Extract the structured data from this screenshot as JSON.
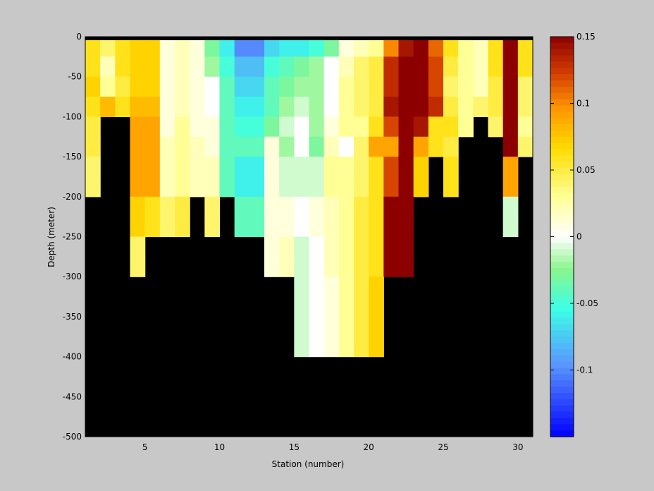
{
  "chart_data": {
    "type": "heatmap",
    "title": "",
    "xlabel": "Station (number)",
    "ylabel": "Depth (meter)",
    "xlim": [
      1,
      31
    ],
    "ylim": [
      -500,
      0
    ],
    "xticks": [
      5,
      10,
      15,
      20,
      25,
      30
    ],
    "yticks": [
      0,
      -50,
      -100,
      -150,
      -200,
      -250,
      -300,
      -350,
      -400,
      -450,
      -500
    ],
    "colorbar": {
      "clim": [
        -0.15,
        0.15
      ],
      "ticks": [
        0.15,
        0.1,
        0.05,
        0,
        -0.05,
        -0.1
      ],
      "colormap": "jet-like with white at zero"
    },
    "missing_color": "#000000",
    "background_color": "#c8c8c8",
    "depth_bins": [
      0,
      -25,
      -50,
      -75,
      -100,
      -125,
      -150,
      -175,
      -200,
      -225,
      -250,
      -275,
      -300,
      -325,
      -350,
      -375,
      -400
    ],
    "stations": [
      1,
      2,
      3,
      4,
      5,
      6,
      7,
      8,
      9,
      10,
      11,
      12,
      13,
      14,
      15,
      16,
      17,
      18,
      19,
      20,
      21,
      22,
      23,
      24,
      25,
      26,
      27,
      28,
      29,
      30
    ],
    "values": [
      [
        0.06,
        0.04,
        0.06,
        0.07,
        0.07,
        0.01,
        0.02,
        0.01,
        -0.03,
        -0.06,
        -0.1,
        -0.1,
        -0.07,
        -0.06,
        -0.06,
        -0.05,
        -0.03,
        0.01,
        0.02,
        0.03,
        0.1,
        0.14,
        0.15,
        0.11,
        0.06,
        0.03,
        0.02,
        0.06,
        0.15,
        0.06
      ],
      [
        0.06,
        0.02,
        0.06,
        0.07,
        0.07,
        0.01,
        0.02,
        0.01,
        -0.02,
        -0.05,
        -0.08,
        -0.08,
        -0.05,
        -0.04,
        -0.03,
        -0.02,
        0.0,
        0.02,
        0.04,
        0.05,
        0.13,
        0.15,
        0.15,
        0.12,
        0.05,
        0.03,
        0.02,
        0.06,
        0.15,
        0.06
      ],
      [
        0.07,
        0.03,
        0.05,
        0.07,
        0.07,
        0.01,
        0.02,
        0.01,
        0.0,
        -0.04,
        -0.07,
        -0.07,
        -0.04,
        -0.03,
        -0.02,
        -0.02,
        0.0,
        0.03,
        0.04,
        0.05,
        0.13,
        0.15,
        0.15,
        0.12,
        0.04,
        0.03,
        0.02,
        0.05,
        0.15,
        0.04
      ],
      [
        0.06,
        0.08,
        0.06,
        0.08,
        0.08,
        0.01,
        0.02,
        0.01,
        0.0,
        -0.04,
        -0.06,
        -0.06,
        -0.04,
        -0.02,
        -0.01,
        -0.02,
        0.0,
        0.03,
        0.04,
        0.05,
        0.14,
        0.15,
        0.15,
        0.13,
        0.05,
        0.03,
        0.04,
        0.05,
        0.15,
        0.04
      ],
      [
        0.05,
        null,
        null,
        0.09,
        0.09,
        0.01,
        0.03,
        0.01,
        0.01,
        -0.04,
        -0.05,
        -0.05,
        -0.03,
        -0.01,
        0.0,
        -0.02,
        0.01,
        0.03,
        0.03,
        0.06,
        0.12,
        0.15,
        0.14,
        0.06,
        0.06,
        0.03,
        null,
        0.04,
        0.15,
        0.03
      ],
      [
        0.05,
        null,
        null,
        0.09,
        0.09,
        0.02,
        0.03,
        0.02,
        0.01,
        -0.04,
        -0.04,
        -0.04,
        0.01,
        -0.02,
        0.0,
        -0.03,
        0.02,
        0.0,
        0.04,
        0.09,
        0.09,
        0.15,
        0.09,
        0.06,
        0.05,
        null,
        null,
        null,
        0.15,
        0.04
      ],
      [
        0.04,
        null,
        null,
        0.09,
        0.09,
        0.02,
        0.03,
        0.02,
        0.02,
        -0.04,
        -0.06,
        -0.06,
        0.01,
        -0.01,
        -0.01,
        -0.01,
        0.03,
        0.03,
        0.04,
        0.06,
        0.12,
        0.15,
        0.07,
        null,
        0.06,
        null,
        null,
        null,
        0.09,
        null
      ],
      [
        0.04,
        null,
        null,
        0.09,
        0.09,
        0.02,
        0.03,
        0.02,
        0.02,
        -0.04,
        -0.06,
        -0.06,
        0.01,
        -0.01,
        -0.01,
        -0.01,
        0.03,
        0.03,
        0.04,
        0.06,
        0.12,
        0.15,
        0.07,
        null,
        0.06,
        null,
        null,
        null,
        0.09,
        null
      ],
      [
        null,
        null,
        null,
        0.07,
        0.06,
        0.04,
        0.05,
        null,
        0.04,
        null,
        -0.04,
        -0.04,
        0.01,
        0.01,
        0.0,
        0.01,
        0.02,
        0.03,
        0.05,
        0.06,
        0.15,
        0.15,
        null,
        null,
        null,
        null,
        null,
        null,
        -0.01,
        null
      ],
      [
        null,
        null,
        null,
        0.07,
        0.06,
        0.04,
        0.05,
        null,
        0.04,
        null,
        -0.04,
        -0.04,
        0.01,
        0.01,
        0.0,
        0.01,
        0.02,
        0.03,
        0.05,
        0.06,
        0.15,
        0.15,
        null,
        null,
        null,
        null,
        null,
        null,
        -0.01,
        null
      ],
      [
        null,
        null,
        null,
        0.04,
        null,
        null,
        null,
        null,
        null,
        null,
        null,
        null,
        0.01,
        0.02,
        -0.01,
        0.0,
        0.02,
        0.03,
        0.05,
        0.06,
        0.15,
        0.15,
        null,
        null,
        null,
        null,
        null,
        null,
        null,
        null
      ],
      [
        null,
        null,
        null,
        0.04,
        null,
        null,
        null,
        null,
        null,
        null,
        null,
        null,
        0.01,
        0.02,
        -0.01,
        0.0,
        0.02,
        0.03,
        0.05,
        0.06,
        0.15,
        0.15,
        null,
        null,
        null,
        null,
        null,
        null,
        null,
        null
      ],
      [
        null,
        null,
        null,
        null,
        null,
        null,
        null,
        null,
        null,
        null,
        null,
        null,
        null,
        null,
        -0.01,
        0.0,
        0.01,
        0.03,
        0.05,
        0.07,
        null,
        null,
        null,
        null,
        null,
        null,
        null,
        null,
        null,
        null
      ],
      [
        null,
        null,
        null,
        null,
        null,
        null,
        null,
        null,
        null,
        null,
        null,
        null,
        null,
        null,
        -0.01,
        0.0,
        0.01,
        0.03,
        0.05,
        0.07,
        null,
        null,
        null,
        null,
        null,
        null,
        null,
        null,
        null,
        null
      ],
      [
        null,
        null,
        null,
        null,
        null,
        null,
        null,
        null,
        null,
        null,
        null,
        null,
        null,
        null,
        -0.01,
        0.0,
        0.01,
        0.03,
        0.05,
        0.07,
        null,
        null,
        null,
        null,
        null,
        null,
        null,
        null,
        null,
        null
      ],
      [
        null,
        null,
        null,
        null,
        null,
        null,
        null,
        null,
        null,
        null,
        null,
        null,
        null,
        null,
        -0.01,
        0.0,
        0.01,
        0.03,
        0.05,
        0.07,
        null,
        null,
        null,
        null,
        null,
        null,
        null,
        null,
        null,
        null
      ]
    ]
  }
}
